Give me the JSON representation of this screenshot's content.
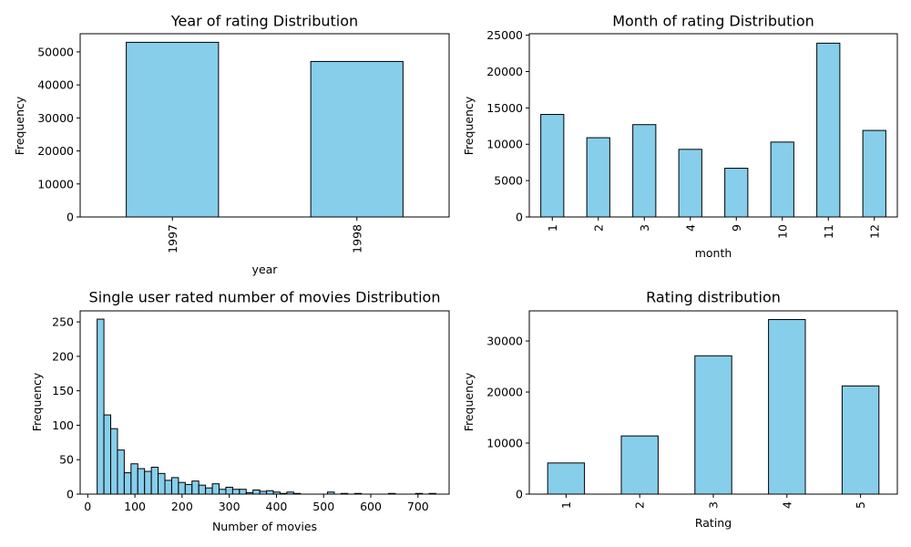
{
  "style": {
    "bar_fill": "#87ceeb",
    "bar_edge": "#000000",
    "background": "#ffffff"
  },
  "chart_data": [
    {
      "type": "bar",
      "title": "Year of rating Distribution",
      "xlabel": "year",
      "ylabel": "Frequency",
      "categories": [
        "1997",
        "1998"
      ],
      "values": [
        52900,
        47100
      ],
      "ylim": [
        0,
        55500
      ],
      "yticks": [
        0,
        10000,
        20000,
        30000,
        40000,
        50000
      ],
      "grid": false,
      "xtick_rotation": 90
    },
    {
      "type": "bar",
      "title": "Month of rating Distribution",
      "xlabel": "month",
      "ylabel": "Frequency",
      "categories": [
        "1",
        "2",
        "3",
        "4",
        "9",
        "10",
        "11",
        "12"
      ],
      "values": [
        14100,
        10900,
        12700,
        9300,
        6700,
        10300,
        23900,
        11900
      ],
      "ylim": [
        0,
        25200
      ],
      "yticks": [
        0,
        5000,
        10000,
        15000,
        20000,
        25000
      ],
      "grid": false,
      "xtick_rotation": 90
    },
    {
      "type": "bar",
      "title": "Single user rated number of movies Distribution",
      "xlabel": "Number of movies",
      "ylabel": "Frequency",
      "histogram": true,
      "bins": {
        "start": 20,
        "width": 14.36,
        "count": 50
      },
      "values": [
        254,
        115,
        95,
        64,
        31,
        44,
        37,
        33,
        39,
        30,
        20,
        24,
        17,
        14,
        19,
        13,
        9,
        15,
        7,
        10,
        7,
        7,
        2,
        6,
        4,
        5,
        3,
        1,
        3,
        1,
        0,
        0,
        0,
        0,
        3,
        0,
        1,
        0,
        1,
        0,
        0,
        0,
        0,
        1,
        0,
        0,
        0,
        1,
        0,
        1
      ],
      "xlim": [
        -16,
        766
      ],
      "xticks": [
        0,
        100,
        200,
        300,
        400,
        500,
        600,
        700
      ],
      "ylim": [
        0,
        266
      ],
      "yticks": [
        0,
        50,
        100,
        150,
        200,
        250
      ],
      "grid": false
    },
    {
      "type": "bar",
      "title": "Rating distribution",
      "xlabel": "Rating",
      "ylabel": "Frequency",
      "categories": [
        "1",
        "2",
        "3",
        "4",
        "5"
      ],
      "values": [
        6100,
        11400,
        27100,
        34200,
        21200
      ],
      "ylim": [
        0,
        35900
      ],
      "yticks": [
        0,
        10000,
        20000,
        30000
      ],
      "grid": false,
      "xtick_rotation": 90
    }
  ]
}
